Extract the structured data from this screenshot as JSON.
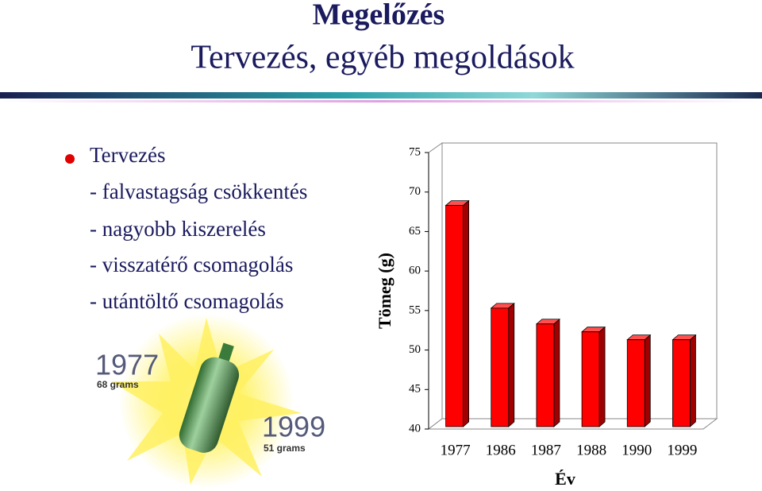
{
  "header": {
    "title": "Megelőzés",
    "subtitle": "Tervezés, egyéb megoldások"
  },
  "bullets": {
    "heading": "Tervezés",
    "items": [
      "- falvastagság csökkentés",
      "- nagyobb kiszerelés",
      "- visszatérő csomagolás",
      "- utántöltő csomagolás"
    ]
  },
  "illustration": {
    "year_1": "1977",
    "weight_1": "68 grams",
    "year_2": "1999",
    "weight_2": "51 grams"
  },
  "chart_data": {
    "type": "bar3d",
    "y_label": "Tömeg (g)",
    "x_label": "Év",
    "categories": [
      "1977",
      "1986",
      "1987",
      "1988",
      "1990",
      "1999"
    ],
    "values": [
      68,
      55,
      53,
      52,
      51,
      51
    ],
    "color": "#ff0000",
    "ylim": [
      40,
      75
    ],
    "yticks": [
      40,
      45,
      50,
      55,
      60,
      65,
      70,
      75
    ],
    "grid": false
  }
}
